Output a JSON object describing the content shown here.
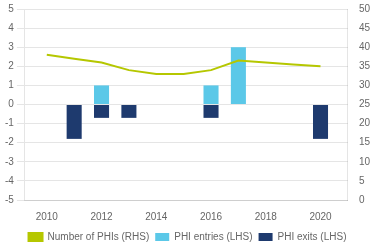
{
  "chart_data": {
    "type": "bar",
    "x": [
      2010,
      2011,
      2012,
      2013,
      2014,
      2015,
      2016,
      2017,
      2018,
      2019,
      2020
    ],
    "series": [
      {
        "name": "PHI entries (LHS)",
        "color": "#5bc8e8",
        "values": [
          0,
          0,
          1.0,
          0,
          0,
          0,
          1.0,
          3.0,
          0,
          0,
          0
        ]
      },
      {
        "name": "PHI exits (LHS)",
        "color": "#1e3a6e",
        "values": [
          0,
          -1.8,
          -0.7,
          -0.7,
          0,
          0,
          -0.7,
          0,
          0,
          0,
          -1.8
        ]
      },
      {
        "name": "Number of PHIs (RHS)",
        "type": "line",
        "axis": "y2",
        "color": "#b5c700",
        "values": [
          38,
          37,
          36,
          34,
          33,
          33,
          34,
          36.5,
          36,
          35.5,
          35
        ]
      }
    ],
    "xlim": [
      2009.2,
      2021.0
    ],
    "xticks": [
      2010,
      2012,
      2014,
      2016,
      2018,
      2020
    ],
    "ylim": [
      -5,
      5
    ],
    "yticks": [
      -5,
      -4,
      -3,
      -2,
      -1,
      0,
      1,
      2,
      3,
      4,
      5
    ],
    "y2lim": [
      0,
      50
    ],
    "y2ticks": [
      0,
      5,
      10,
      15,
      20,
      25,
      30,
      35,
      40,
      45,
      50
    ],
    "grid": "y",
    "legend": "bottom"
  }
}
